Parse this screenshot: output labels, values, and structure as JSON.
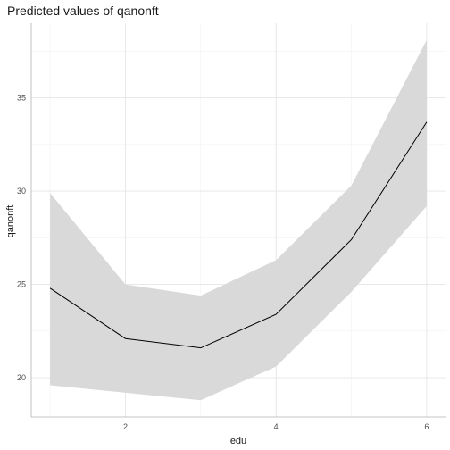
{
  "chart_data": {
    "type": "line",
    "title": "Predicted values of qanonft",
    "xlabel": "edu",
    "ylabel": "qanonft",
    "x": [
      1,
      2,
      3,
      4,
      5,
      6
    ],
    "series": [
      {
        "values": [
          24.8,
          22.1,
          21.6,
          23.4,
          27.4,
          33.7
        ],
        "ci_low": [
          19.6,
          19.2,
          18.8,
          20.6,
          24.6,
          29.2
        ],
        "ci_high": [
          29.9,
          25.0,
          24.4,
          26.3,
          30.3,
          38.1
        ],
        "line_color": "#000000",
        "band_color": "#d9d9d9"
      }
    ],
    "x_ticks": [
      "2",
      "4",
      "6"
    ],
    "y_ticks": [
      "20",
      "25",
      "30",
      "35"
    ],
    "xlim": [
      0.75,
      6.25
    ],
    "ylim": [
      17.9,
      39.0
    ],
    "grid": true,
    "legend": "none"
  }
}
